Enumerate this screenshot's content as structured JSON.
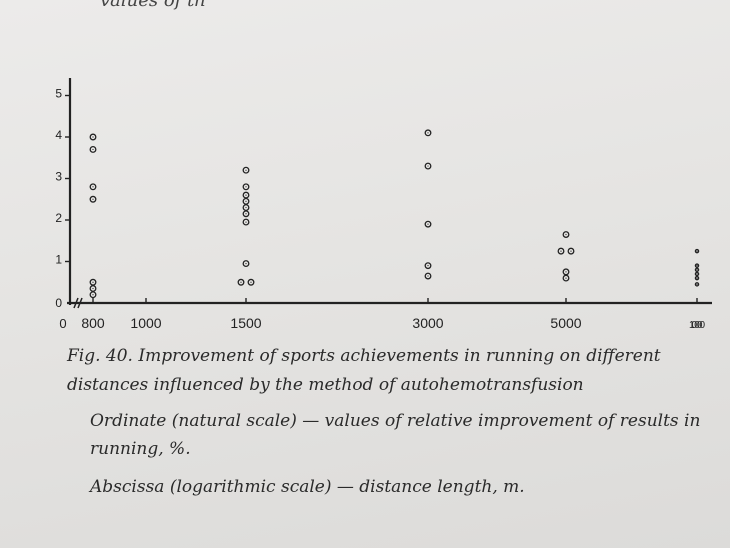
{
  "page": {
    "top_fragment": "values of th"
  },
  "figure": {
    "caption": "Fig. 40. Improvement of sports achievements in running on different distances influenced by the method of autohemotransfusion",
    "ordinate_note": "Ordinate (natural scale) — values of relative improvement of results in running, %.",
    "abscissa_note": "Abscissa (logarithmic scale) — distance length, m."
  },
  "chart_data": {
    "type": "scatter",
    "title": "",
    "xlabel": "",
    "ylabel": "",
    "x_scale": "log",
    "x_ticks": [
      800,
      1000,
      1500,
      3000,
      5000,
      10000
    ],
    "x_tick_labels": [
      "800",
      "1000",
      "1500",
      "3000",
      "5000",
      "10000"
    ],
    "x_origin_label": "0",
    "y_ticks": [
      0,
      1,
      2,
      3,
      4,
      5
    ],
    "y_tick_labels": [
      "0",
      "1",
      "2",
      "3",
      "4",
      "5"
    ],
    "ylim": [
      0,
      5.3
    ],
    "grid": false,
    "points": [
      {
        "x": 800,
        "y": 4.0
      },
      {
        "x": 800,
        "y": 3.7
      },
      {
        "x": 800,
        "y": 2.8
      },
      {
        "x": 800,
        "y": 2.5
      },
      {
        "x": 800,
        "y": 0.5
      },
      {
        "x": 800,
        "y": 0.35
      },
      {
        "x": 800,
        "y": 0.2
      },
      {
        "x": 1500,
        "y": 3.2
      },
      {
        "x": 1500,
        "y": 2.8
      },
      {
        "x": 1500,
        "y": 2.6
      },
      {
        "x": 1500,
        "y": 2.45
      },
      {
        "x": 1500,
        "y": 2.3
      },
      {
        "x": 1500,
        "y": 2.15
      },
      {
        "x": 1500,
        "y": 1.95
      },
      {
        "x": 1500,
        "y": 0.95
      },
      {
        "x": 1500,
        "y": 0.5
      },
      {
        "x": 1500,
        "y": 0.5
      },
      {
        "x": 3000,
        "y": 4.1
      },
      {
        "x": 3000,
        "y": 3.3
      },
      {
        "x": 3000,
        "y": 1.9
      },
      {
        "x": 3000,
        "y": 0.9
      },
      {
        "x": 3000,
        "y": 0.65
      },
      {
        "x": 5000,
        "y": 1.65
      },
      {
        "x": 5000,
        "y": 1.25
      },
      {
        "x": 5000,
        "y": 1.25
      },
      {
        "x": 5000,
        "y": 0.75
      },
      {
        "x": 5000,
        "y": 0.6
      },
      {
        "x": 10000,
        "y": 1.25
      },
      {
        "x": 10000,
        "y": 0.9
      },
      {
        "x": 10000,
        "y": 0.8
      },
      {
        "x": 10000,
        "y": 0.7
      },
      {
        "x": 10000,
        "y": 0.6
      },
      {
        "x": 10000,
        "y": 0.45
      }
    ]
  }
}
